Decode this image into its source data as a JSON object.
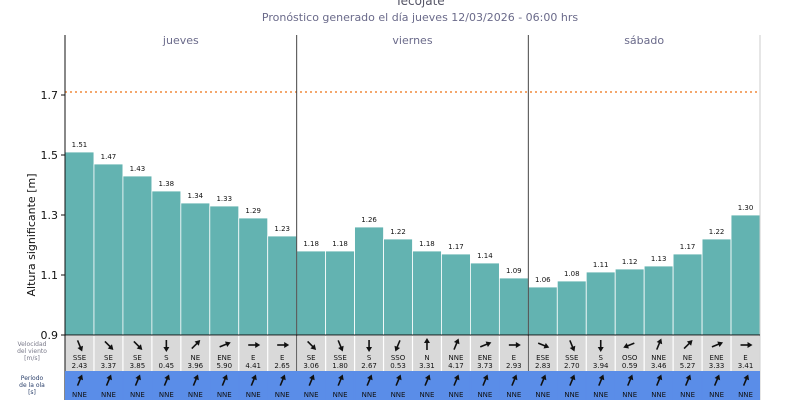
{
  "header": {
    "title": "Tecojate",
    "subtitle": "Pronóstico generado el día jueves 12/03/2026 - 06:00 hrs"
  },
  "rows": {
    "wind_label": [
      "Velocidad",
      "del viento",
      "[m/s]"
    ],
    "swell_label": [
      "Período",
      "de la ola",
      "[s]"
    ]
  },
  "colors": {
    "bar": "#63b3b1",
    "threshold": "#f08a3c",
    "wind_row_bg": "#d9d9d9",
    "swell_row_bg": "#5a8de8"
  },
  "chart_data": {
    "type": "bar",
    "ylabel": "Altura significante [m]",
    "ylim": [
      0.9,
      1.9
    ],
    "yticks": [
      0.9,
      1.1,
      1.3,
      1.5,
      1.7
    ],
    "threshold": 1.71,
    "days": [
      {
        "label": "jueves",
        "count": 8
      },
      {
        "label": "viernes",
        "count": 8
      },
      {
        "label": "sábado",
        "count": 8
      }
    ],
    "values": [
      1.51,
      1.47,
      1.43,
      1.38,
      1.34,
      1.33,
      1.29,
      1.23,
      1.18,
      1.18,
      1.26,
      1.22,
      1.18,
      1.17,
      1.14,
      1.09,
      1.06,
      1.08,
      1.11,
      1.12,
      1.13,
      1.17,
      1.22,
      1.3
    ],
    "labels": [
      "1.51",
      "1.47",
      "1.43",
      "1.38",
      "1.34",
      "1.33",
      "1.29",
      "1.23",
      "1.18",
      "1.18",
      "1.26",
      "1.22",
      "1.18",
      "1.17",
      "1.14",
      "1.09",
      "1.06",
      "1.08",
      "1.11",
      "1.12",
      "1.13",
      "1.17",
      "1.22",
      "1.30"
    ],
    "wind_dir": [
      "SSE",
      "SE",
      "SE",
      "S",
      "NE",
      "ENE",
      "E",
      "E",
      "SE",
      "SSE",
      "S",
      "SSO",
      "N",
      "NNE",
      "ENE",
      "E",
      "ESE",
      "SSE",
      "S",
      "OSO",
      "NNE",
      "NE",
      "ENE",
      "E"
    ],
    "wind_speed": [
      "2.43",
      "3.37",
      "3.85",
      "0.45",
      "3.96",
      "5.90",
      "4.41",
      "2.65",
      "3.06",
      "1.80",
      "2.67",
      "0.53",
      "3.31",
      "4.17",
      "3.73",
      "2.93",
      "2.83",
      "2.70",
      "3.94",
      "0.59",
      "3.46",
      "5.27",
      "3.33",
      "3.41"
    ],
    "swell_dir": [
      "NNE",
      "NNE",
      "NNE",
      "NNE",
      "NNE",
      "NNE",
      "NNE",
      "NNE",
      "NNE",
      "NNE",
      "NNE",
      "NNE",
      "NNE",
      "NNE",
      "NNE",
      "NNE",
      "NNE",
      "NNE",
      "NNE",
      "NNE",
      "NNE",
      "NNE",
      "NNE",
      "NNE"
    ]
  }
}
